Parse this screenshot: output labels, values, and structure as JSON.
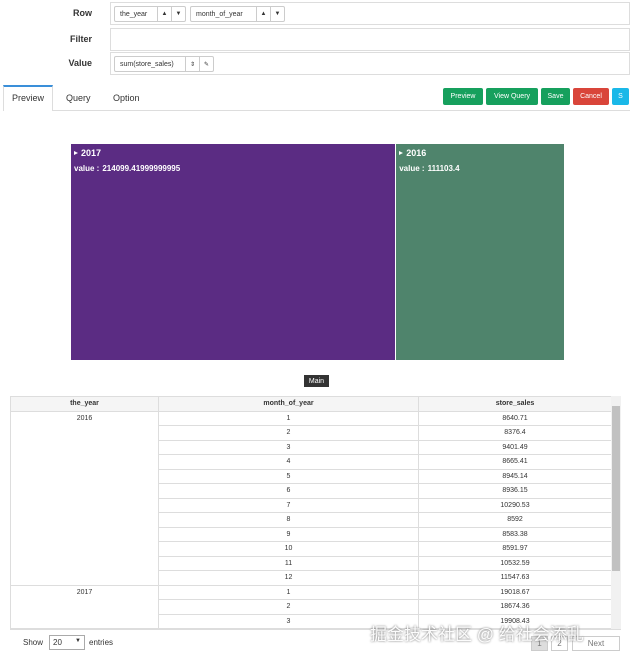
{
  "form": {
    "row_label": "Row",
    "filter_label": "Filter",
    "value_label": "Value",
    "row_fields": [
      "the_year",
      "month_of_year"
    ],
    "value_fields": [
      "sum(store_sales)"
    ]
  },
  "tabs": [
    "Preview",
    "Query",
    "Option"
  ],
  "buttons": [
    "Preview",
    "View Query",
    "Save",
    "Cancel",
    "S"
  ],
  "treemap": {
    "nodes": [
      {
        "name": "2017",
        "label": "value :",
        "value": 214099.41999999995,
        "color": "#5b2c83"
      },
      {
        "name": "2016",
        "label": "value :",
        "value": 111103.4,
        "color": "#4f846c"
      }
    ],
    "switch": "Main"
  },
  "table": {
    "header": [
      "the_year",
      "month_of_year",
      "store_sales"
    ],
    "groups": [
      {
        "year": "2016",
        "rows": [
          [
            "1",
            "8640.71"
          ],
          [
            "2",
            "8376.4"
          ],
          [
            "3",
            "9401.49"
          ],
          [
            "4",
            "8665.41"
          ],
          [
            "5",
            "8945.14"
          ],
          [
            "6",
            "8936.15"
          ],
          [
            "7",
            "10290.53"
          ],
          [
            "8",
            "8592"
          ],
          [
            "9",
            "8583.38"
          ],
          [
            "10",
            "8591.97"
          ],
          [
            "11",
            "10532.59"
          ],
          [
            "12",
            "11547.63"
          ]
        ]
      },
      {
        "year": "2017",
        "rows": [
          [
            "1",
            "19018.67"
          ],
          [
            "2",
            "18674.36"
          ],
          [
            "3",
            "19908.43"
          ]
        ]
      }
    ]
  },
  "footer": {
    "show": "Show",
    "page_size": "20",
    "entries": "entries",
    "pages": [
      "1",
      "2"
    ],
    "next": "Next"
  },
  "watermark": "掘金技术社区 @ 给社会添乱"
}
